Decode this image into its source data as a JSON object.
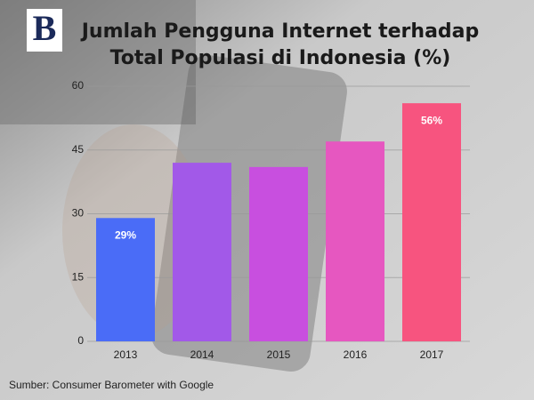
{
  "chart_data": {
    "type": "bar",
    "logo": "B",
    "title": [
      "Jumlah Pengguna Internet terhadap",
      "Total Populasi di Indonesia (%)"
    ],
    "categories": [
      "2013",
      "2014",
      "2015",
      "2016",
      "2017"
    ],
    "values": [
      29,
      42,
      41,
      47,
      56
    ],
    "value_labels": [
      "29%",
      null,
      null,
      null,
      "56%"
    ],
    "colors": [
      "#4a6cf7",
      "#a259e8",
      "#c84fdf",
      "#e657c0",
      "#f7547f"
    ],
    "ylim": [
      0,
      60
    ],
    "yticks": [
      0,
      15,
      30,
      45,
      60
    ],
    "grid": true,
    "source": "Sumber: Consumer Barometer with Google"
  }
}
